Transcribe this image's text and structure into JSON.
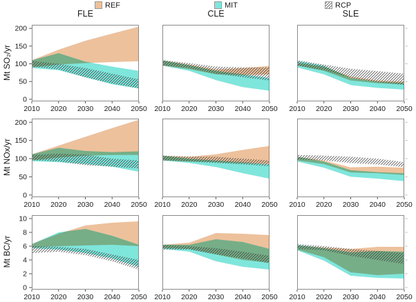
{
  "colors": {
    "ref_fill": "#EDC19C",
    "mit_fill": "#7FE6DC",
    "overlap_green": "#76AE87",
    "hatch_line": "#3a3a3a",
    "frame": "#8a8a8a",
    "tick": "#555555",
    "right_tick": "#b5b5b5",
    "text": "#1a1a1a"
  },
  "legend": {
    "items": [
      {
        "label": "REF",
        "swatch": "ref-fill"
      },
      {
        "label": "MIT",
        "swatch": "mit-fill"
      },
      {
        "label": "RCP",
        "swatch": "hatch"
      }
    ]
  },
  "chart_data": {
    "type": "area",
    "description": "3x3 grid of emission range (band) plots; columns are air-pollution legislation scenarios, rows are pollutant species; bands show REF (reference, tan), MIT (mitigation, cyan; green where it overlaps REF) and RCP (hatched) ranges, 2010-2050",
    "columns": [
      "FLE",
      "CLE",
      "SLE"
    ],
    "series_names": [
      "REF",
      "MIT",
      "RCP"
    ],
    "x_years": [
      2010,
      2020,
      2030,
      2040,
      2050
    ],
    "x_tick_labels": [
      "2010",
      "2020",
      "2030",
      "2040",
      "2050"
    ],
    "rows": [
      {
        "ylabel": "Mt SO₂/yr",
        "yticks": [
          0,
          50,
          100,
          150,
          200
        ],
        "ylim": [
          0,
          200
        ]
      },
      {
        "ylabel": "Mt NOx/yr",
        "yticks": [
          0,
          50,
          100,
          150,
          200
        ],
        "ylim": [
          0,
          200
        ]
      },
      {
        "ylabel": "Mt BC/yr",
        "yticks": [
          0,
          2,
          4,
          6,
          8,
          10
        ],
        "ylim": [
          0,
          10
        ]
      }
    ],
    "panels": [
      {
        "row": 0,
        "col": 0,
        "pollutant": "SO2",
        "scenario": "FLE",
        "bands": {
          "REF": {
            "upper": [
              110,
              140,
              165,
              185,
              205
            ],
            "lower": [
              90,
              98,
              102,
              105,
              107
            ]
          },
          "MIT": {
            "upper": [
              110,
              130,
              106,
              92,
              80
            ],
            "lower": [
              88,
              82,
              62,
              42,
              30
            ]
          },
          "RCP": {
            "upper": [
              108,
              100,
              88,
              72,
              56
            ],
            "lower": [
              92,
              84,
              62,
              44,
              31
            ]
          }
        }
      },
      {
        "row": 0,
        "col": 1,
        "pollutant": "SO2",
        "scenario": "CLE",
        "bands": {
          "REF": {
            "upper": [
              110,
              98,
              84,
              88,
              94
            ],
            "lower": [
              95,
              85,
              70,
              68,
              70
            ]
          },
          "MIT": {
            "upper": [
              110,
              96,
              80,
              70,
              60
            ],
            "lower": [
              95,
              80,
              54,
              34,
              24
            ]
          },
          "RCP": {
            "upper": [
              110,
              102,
              92,
              90,
              90
            ],
            "lower": [
              96,
              88,
              72,
              62,
              53
            ]
          }
        }
      },
      {
        "row": 0,
        "col": 2,
        "pollutant": "SO2",
        "scenario": "SLE",
        "bands": {
          "REF": {
            "upper": [
              103,
              92,
              64,
              53,
              50
            ],
            "lower": [
              95,
              80,
              53,
              45,
              42
            ]
          },
          "MIT": {
            "upper": [
              108,
              95,
              60,
              50,
              46
            ],
            "lower": [
              90,
              70,
              40,
              32,
              27
            ]
          },
          "RCP": {
            "upper": [
              110,
              98,
              86,
              79,
              72
            ],
            "lower": [
              95,
              82,
              60,
              48,
              40
            ]
          }
        }
      },
      {
        "row": 1,
        "col": 0,
        "pollutant": "NOx",
        "scenario": "FLE",
        "bands": {
          "REF": {
            "upper": [
              112,
              136,
              160,
              184,
              207
            ],
            "lower": [
              95,
              103,
              108,
              110,
              110
            ]
          },
          "MIT": {
            "upper": [
              112,
              130,
              121,
              118,
              120
            ],
            "lower": [
              93,
              90,
              85,
              78,
              64
            ]
          },
          "RCP": {
            "upper": [
              110,
              114,
              111,
              100,
              95
            ],
            "lower": [
              96,
              92,
              82,
              78,
              73
            ]
          }
        }
      },
      {
        "row": 1,
        "col": 1,
        "pollutant": "NOx",
        "scenario": "CLE",
        "bands": {
          "REF": {
            "upper": [
              108,
              105,
              112,
              124,
              135
            ],
            "lower": [
              95,
              92,
              90,
              87,
              85
            ]
          },
          "MIT": {
            "upper": [
              108,
              100,
              95,
              90,
              84
            ],
            "lower": [
              95,
              88,
              77,
              60,
              45
            ]
          },
          "RCP": {
            "upper": [
              108,
              106,
              105,
              100,
              95
            ],
            "lower": [
              96,
              92,
              88,
              84,
              79
            ]
          }
        }
      },
      {
        "row": 1,
        "col": 2,
        "pollutant": "NOx",
        "scenario": "SLE",
        "bands": {
          "REF": {
            "upper": [
              105,
              95,
              76,
              78,
              75
            ],
            "lower": [
              95,
              85,
              62,
              60,
              55
            ]
          },
          "MIT": {
            "upper": [
              105,
              92,
              68,
              63,
              60
            ],
            "lower": [
              92,
              75,
              50,
              45,
              38
            ]
          },
          "RCP": {
            "upper": [
              110,
              108,
              105,
              100,
              90
            ],
            "lower": [
              98,
              95,
              88,
              84,
              77
            ]
          }
        }
      },
      {
        "row": 2,
        "col": 0,
        "pollutant": "BC",
        "scenario": "FLE",
        "bands": {
          "REF": {
            "upper": [
              6.3,
              7.8,
              9.0,
              9.4,
              9.6
            ],
            "lower": [
              5.8,
              6.0,
              6.1,
              6.2,
              6.0
            ]
          },
          "MIT": {
            "upper": [
              6.3,
              8.0,
              8.5,
              7.5,
              6.2
            ],
            "lower": [
              5.7,
              5.5,
              5.0,
              4.2,
              3.0
            ]
          },
          "RCP": {
            "upper": [
              6.0,
              5.9,
              5.6,
              4.8,
              4.0
            ],
            "lower": [
              5.0,
              5.2,
              4.7,
              3.8,
              2.6
            ]
          }
        }
      },
      {
        "row": 2,
        "col": 1,
        "pollutant": "BC",
        "scenario": "CLE",
        "bands": {
          "REF": {
            "upper": [
              6.2,
              6.5,
              7.9,
              7.8,
              7.6
            ],
            "lower": [
              5.7,
              5.6,
              4.8,
              4.0,
              3.6
            ]
          },
          "MIT": {
            "upper": [
              6.2,
              6.2,
              7.0,
              6.6,
              5.6
            ],
            "lower": [
              5.6,
              5.2,
              3.8,
              3.0,
              2.6
            ]
          },
          "RCP": {
            "upper": [
              6.2,
              6.0,
              5.7,
              5.2,
              4.6
            ],
            "lower": [
              5.5,
              5.5,
              4.8,
              4.2,
              3.5
            ]
          }
        }
      },
      {
        "row": 2,
        "col": 2,
        "pollutant": "BC",
        "scenario": "SLE",
        "bands": {
          "REF": {
            "upper": [
              6.1,
              5.8,
              5.6,
              5.9,
              5.9
            ],
            "lower": [
              5.5,
              4.4,
              2.2,
              1.8,
              2.0
            ]
          },
          "MIT": {
            "upper": [
              6.2,
              5.7,
              5.1,
              5.3,
              5.2
            ],
            "lower": [
              5.4,
              3.9,
              1.7,
              1.4,
              1.3
            ]
          },
          "RCP": {
            "upper": [
              6.3,
              6.0,
              5.6,
              5.3,
              5.0
            ],
            "lower": [
              5.6,
              5.4,
              4.6,
              4.0,
              3.4
            ]
          }
        }
      }
    ]
  }
}
